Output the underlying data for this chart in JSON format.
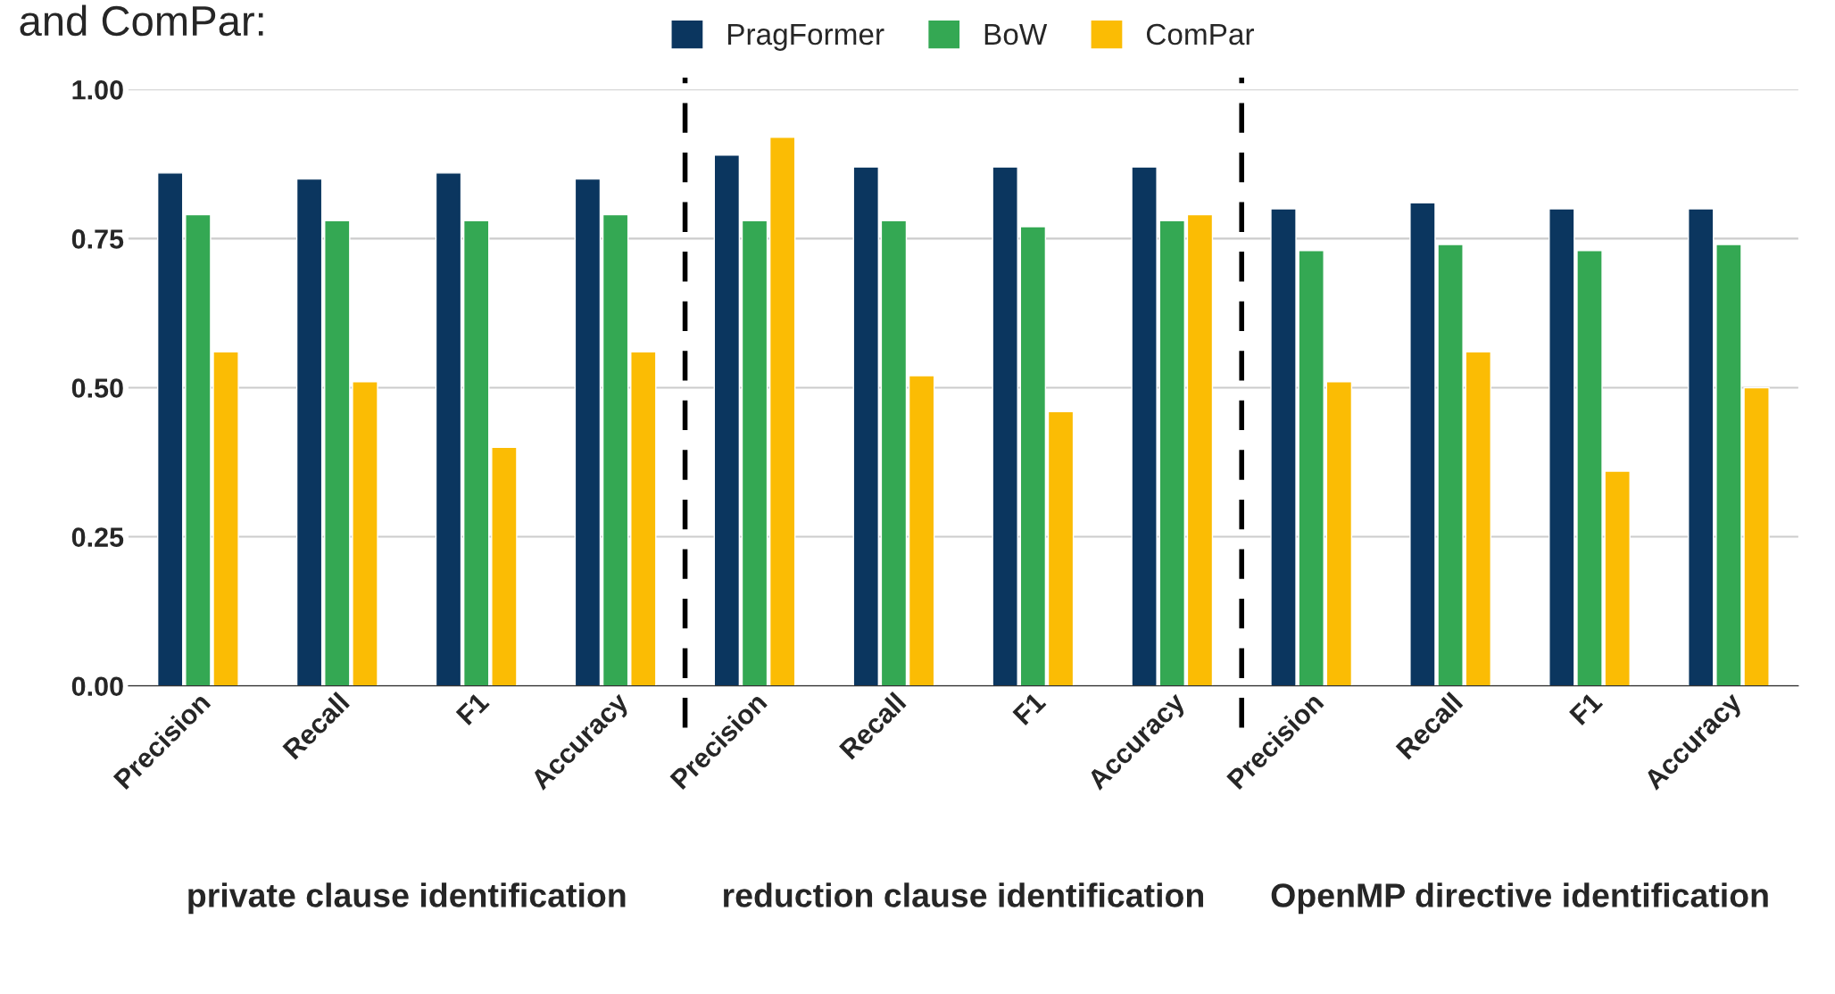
{
  "chart_data": {
    "type": "bar",
    "title": "and ComPar:",
    "categories": [
      "Precision",
      "Recall",
      "F1",
      "Accuracy",
      "Precision",
      "Recall",
      "F1",
      "Accuracy",
      "Precision",
      "Recall",
      "F1",
      "Accuracy"
    ],
    "series": [
      {
        "name": "PragFormer",
        "color": "#0b365f",
        "values": [
          0.86,
          0.85,
          0.86,
          0.85,
          0.89,
          0.87,
          0.87,
          0.87,
          0.8,
          0.81,
          0.8,
          0.8
        ]
      },
      {
        "name": "BoW",
        "color": "#34a853",
        "values": [
          0.79,
          0.78,
          0.78,
          0.79,
          0.78,
          0.78,
          0.77,
          0.78,
          0.73,
          0.74,
          0.73,
          0.74
        ]
      },
      {
        "name": "ComPar",
        "color": "#fbbc04",
        "values": [
          0.56,
          0.51,
          0.4,
          0.56,
          0.92,
          0.52,
          0.46,
          0.79,
          0.51,
          0.56,
          0.36,
          0.5
        ]
      }
    ],
    "ylim": [
      0,
      1.0
    ],
    "yticks": [
      {
        "value": 0,
        "label": "0.00"
      },
      {
        "value": 0.25,
        "label": "0.25"
      },
      {
        "value": 0.5,
        "label": "0.50"
      },
      {
        "value": 0.75,
        "label": "0.75"
      },
      {
        "value": 1.0,
        "label": "1.00"
      }
    ],
    "grid": "y",
    "legend": "top",
    "annotations": [
      "private clause identification",
      "reduction clause identification",
      "OpenMP directive identification"
    ]
  }
}
